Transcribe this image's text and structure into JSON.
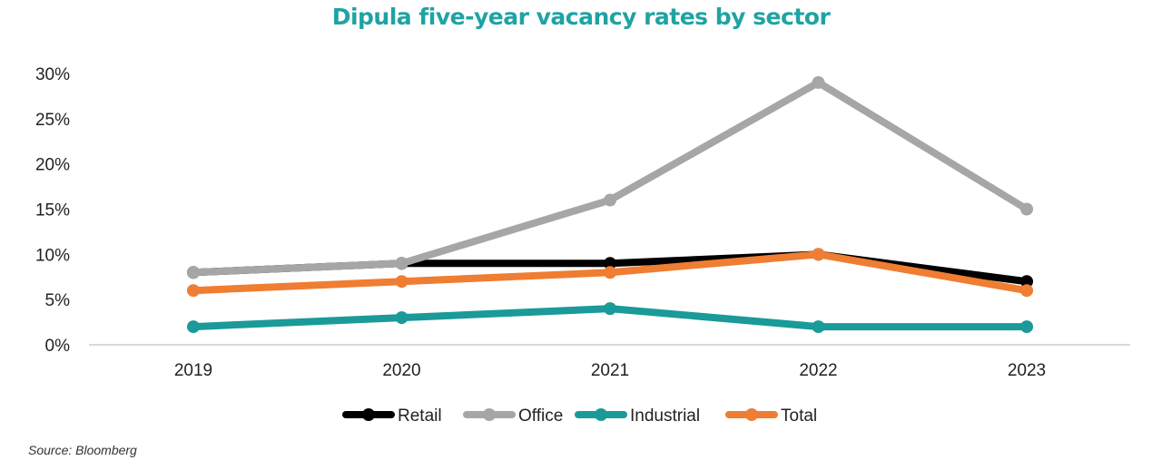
{
  "title": "Dipula five-year vacancy rates by sector",
  "source": "Source: Bloomberg",
  "colors": {
    "title": "#1fa3a3",
    "axis": "#d9d9d9"
  },
  "chart_data": {
    "type": "line",
    "title": "Dipula five-year vacancy rates by sector",
    "xlabel": "",
    "ylabel": "",
    "categories": [
      "2019",
      "2020",
      "2021",
      "2022",
      "2023"
    ],
    "ylim": [
      0,
      30
    ],
    "yticks": [
      0,
      5,
      10,
      15,
      20,
      25,
      30
    ],
    "ytick_labels": [
      "0%",
      "5%",
      "10%",
      "15%",
      "20%",
      "25%",
      "30%"
    ],
    "grid": false,
    "legend": "bottom",
    "series": [
      {
        "name": "Retail",
        "color": "#000000",
        "values": [
          8,
          9,
          9,
          10,
          7
        ]
      },
      {
        "name": "Office",
        "color": "#a6a6a6",
        "values": [
          8,
          9,
          16,
          29,
          15
        ]
      },
      {
        "name": "Industrial",
        "color": "#1a9a98",
        "values": [
          2,
          3,
          4,
          2,
          2
        ]
      },
      {
        "name": "Total",
        "color": "#ef7d32",
        "values": [
          6,
          7,
          8,
          10,
          6
        ]
      }
    ]
  }
}
